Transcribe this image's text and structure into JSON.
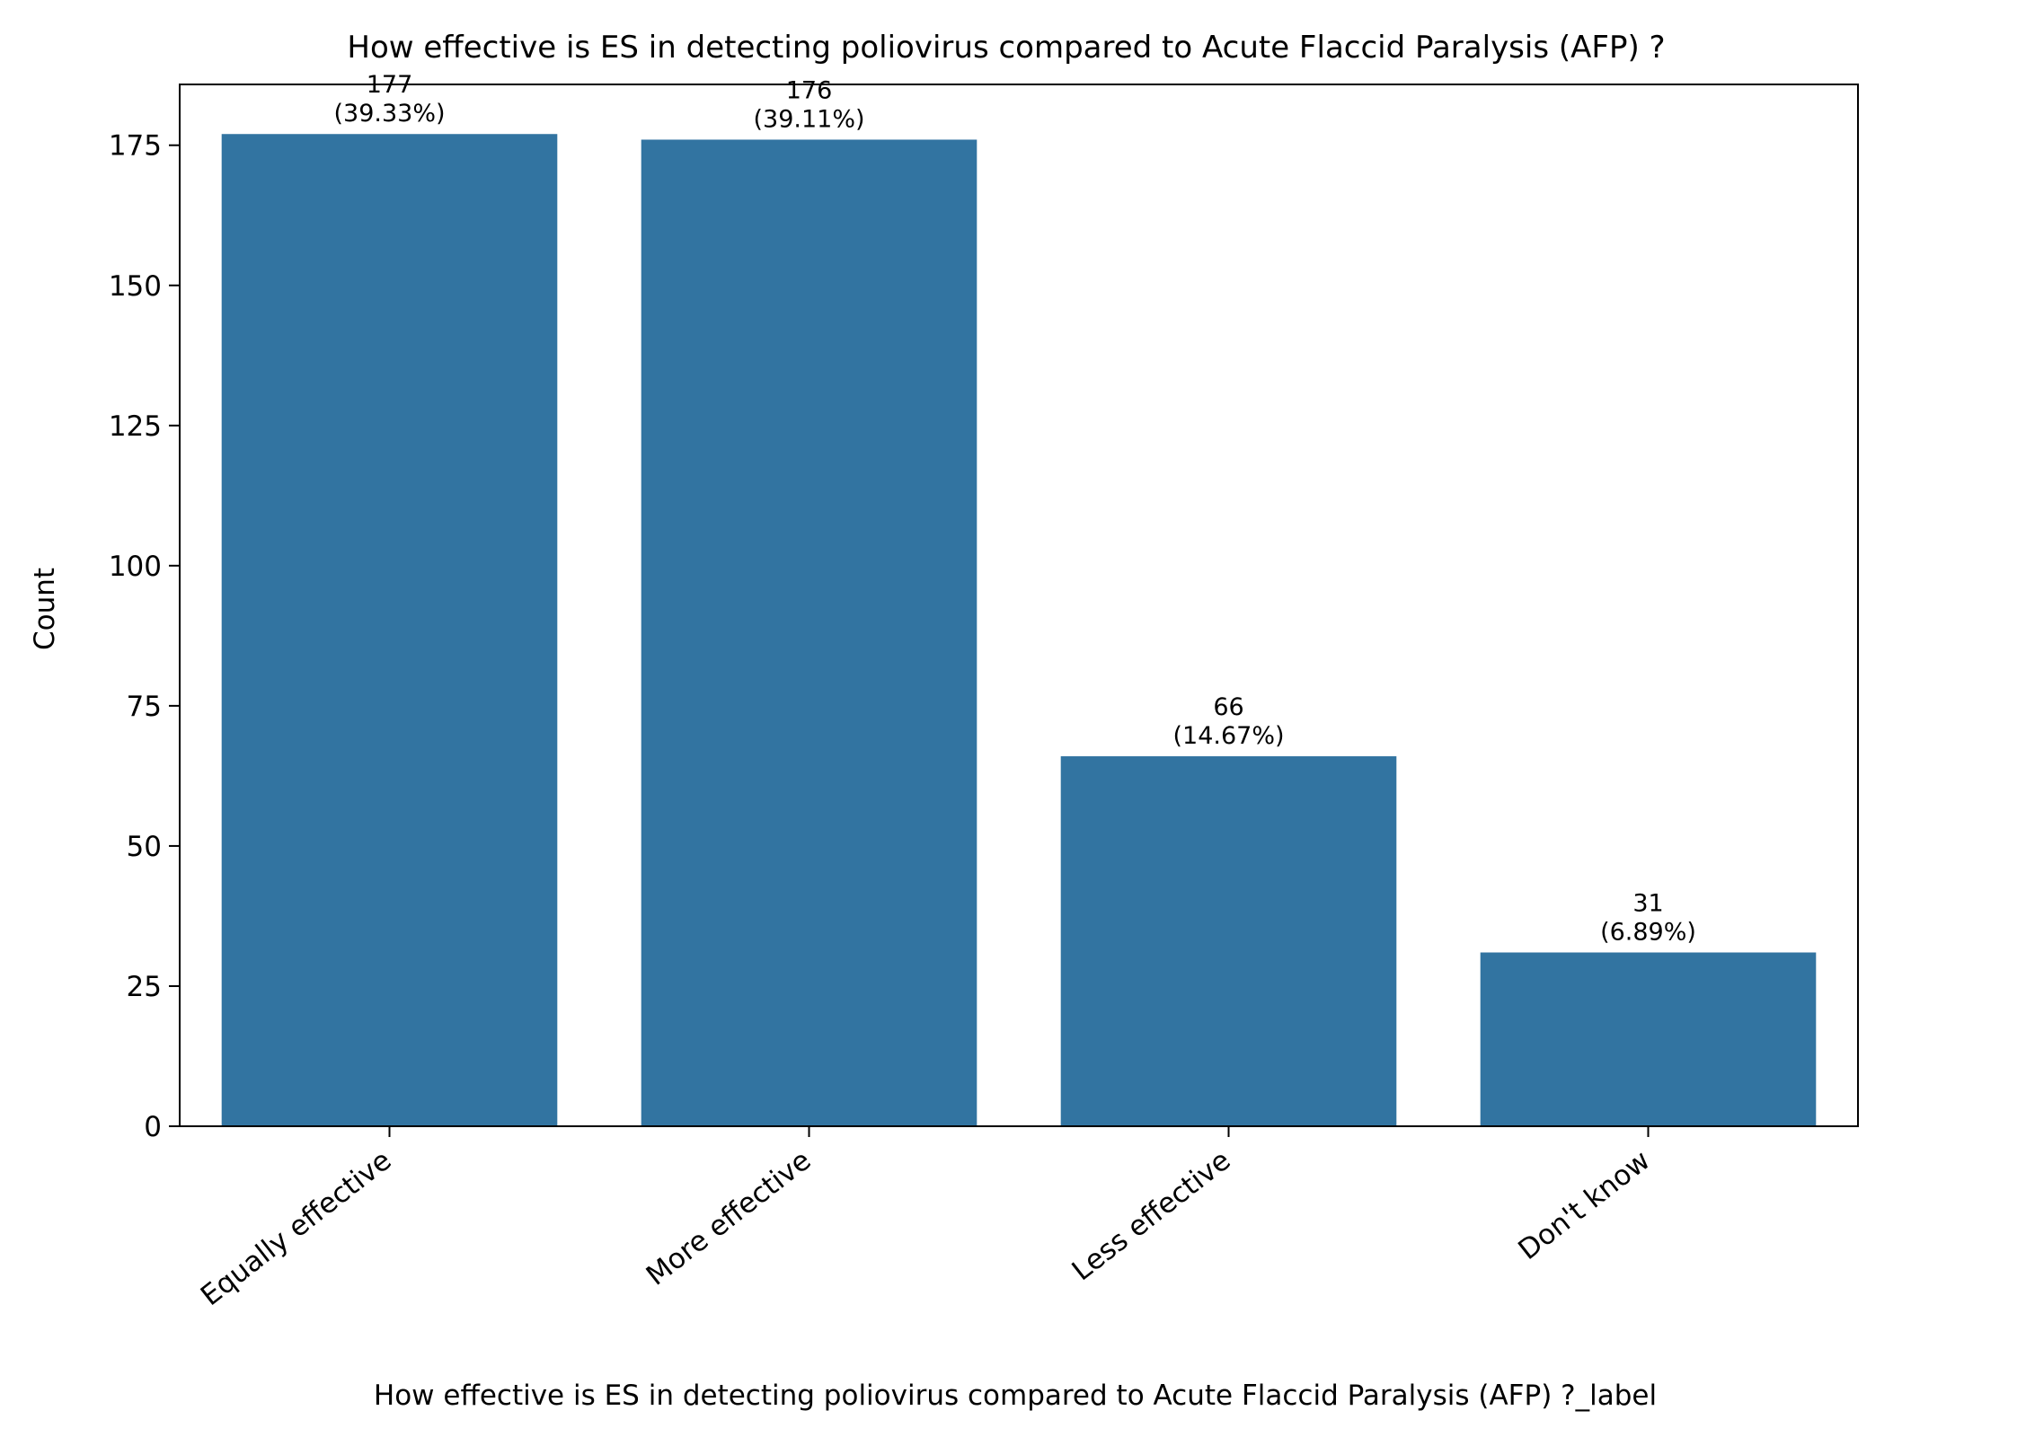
{
  "chart_data": {
    "type": "bar",
    "title": "How effective is ES in detecting poliovirus compared to  Acute Flaccid Paralysis (AFP) ?",
    "xlabel": "How effective is ES in detecting poliovirus compared to  Acute Flaccid Paralysis (AFP) ?_label",
    "ylabel": "Count",
    "categories": [
      "Equally effective",
      "More effective",
      "Less effective",
      "Don't know"
    ],
    "values": [
      177,
      176,
      66,
      31
    ],
    "data_labels": [
      [
        "177",
        "(39.33%)"
      ],
      [
        "176",
        "(39.11%)"
      ],
      [
        "66",
        "(14.67%)"
      ],
      [
        "31",
        "(6.89%)"
      ]
    ],
    "ylim": [
      0,
      185.85
    ],
    "yticks": [
      0,
      25,
      50,
      75,
      100,
      125,
      150,
      175
    ],
    "bar_color": "#3274a1",
    "grid": false,
    "legend": "none"
  }
}
